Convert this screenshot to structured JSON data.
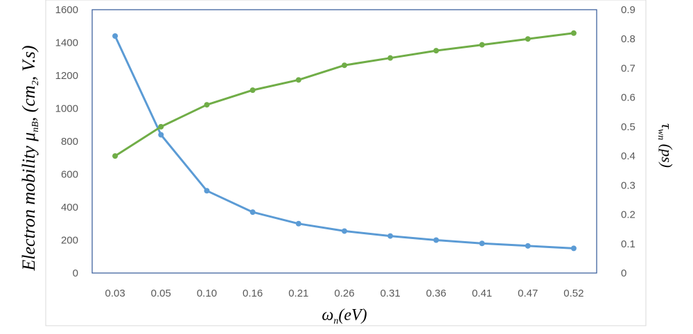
{
  "chart_data": {
    "type": "line",
    "categories": [
      "0.03",
      "0.05",
      "0.10",
      "0.16",
      "0.21",
      "0.26",
      "0.31",
      "0.36",
      "0.41",
      "0.47",
      "0.52"
    ],
    "xlabel": {
      "main": "ω",
      "sub": "n",
      "rest": "(eV)"
    },
    "ylabel_left": {
      "pre": "Electron mobility μ",
      "sub": "nB",
      "mid": ",  (cm",
      "sub2": "2",
      "post": ", V.s)"
    },
    "ylabel_right": {
      "main": "τ",
      "sub": "wn",
      "post": " (ps)"
    },
    "y_left": {
      "min": 0,
      "max": 1600,
      "ticks": [
        "0",
        "200",
        "400",
        "600",
        "800",
        "1000",
        "1200",
        "1400",
        "1600"
      ]
    },
    "y_right": {
      "min": 0,
      "max": 0.9,
      "ticks": [
        "0",
        "0.1",
        "0.2",
        "0.3",
        "0.4",
        "0.5",
        "0.6",
        "0.7",
        "0.8",
        "0.9"
      ]
    },
    "series": [
      {
        "axis": "left",
        "color": "#5b9bd5",
        "values": [
          1440,
          840,
          500,
          370,
          300,
          255,
          225,
          200,
          180,
          165,
          150
        ]
      },
      {
        "axis": "right",
        "color": "#70ad47",
        "values": [
          0.4,
          0.5,
          0.575,
          0.625,
          0.66,
          0.71,
          0.735,
          0.76,
          0.78,
          0.8,
          0.82
        ]
      }
    ],
    "grid": false,
    "legend": "none"
  }
}
